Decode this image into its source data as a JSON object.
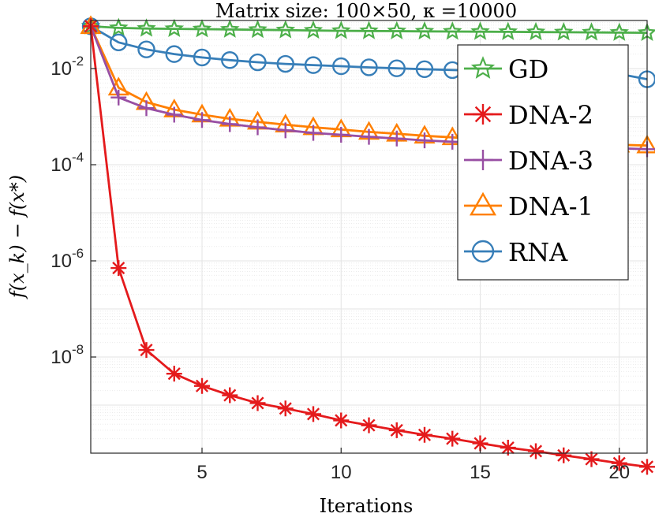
{
  "chart_data": {
    "type": "line",
    "title": "Matrix size: 100×50, κ =10000",
    "xlabel": "Iterations",
    "ylabel": "f(x_k) − f(x*)",
    "xlim": [
      1,
      21
    ],
    "ylim": [
      1e-10,
      0.1
    ],
    "yscale": "log",
    "x_ticks": [
      5,
      10,
      15,
      20
    ],
    "y_ticks": [
      {
        "value": 0.01,
        "base": "10",
        "exp": "-2"
      },
      {
        "value": 0.0001,
        "base": "10",
        "exp": "-4"
      },
      {
        "value": 1e-06,
        "base": "10",
        "exp": "-6"
      },
      {
        "value": 1e-08,
        "base": "10",
        "exp": "-8"
      }
    ],
    "grid": true,
    "minor_grid": true,
    "legend_position": "top-right",
    "x": [
      1,
      2,
      3,
      4,
      5,
      6,
      7,
      8,
      9,
      10,
      11,
      12,
      13,
      14,
      15,
      16,
      17,
      18,
      19,
      20,
      21
    ],
    "series": [
      {
        "name": "GD",
        "color": "#4daf4a",
        "marker": "star",
        "values": [
          0.076,
          0.07,
          0.068,
          0.067,
          0.066,
          0.065,
          0.064,
          0.063,
          0.062,
          0.061,
          0.0605,
          0.06,
          0.0595,
          0.059,
          0.0585,
          0.058,
          0.0575,
          0.057,
          0.0565,
          0.056,
          0.0555
        ]
      },
      {
        "name": "DNA-2",
        "color": "#e41a1c",
        "marker": "asterisk",
        "values": [
          0.076,
          7.1e-07,
          1.4e-08,
          4.5e-09,
          2.5e-09,
          1.6e-09,
          1.1e-09,
          8.5e-10,
          6.5e-10,
          4.8e-10,
          3.8e-10,
          3e-10,
          2.4e-10,
          2e-10,
          1.6e-10,
          1.3e-10,
          1.1e-10,
          9e-11,
          7.5e-11,
          6.2e-11,
          5.2e-11
        ]
      },
      {
        "name": "DNA-3",
        "color": "#984ea3",
        "marker": "plus",
        "values": [
          0.076,
          0.0025,
          0.0015,
          0.0011,
          0.00085,
          0.0007,
          0.0006,
          0.00052,
          0.00046,
          0.00042,
          0.00038,
          0.00035,
          0.00032,
          0.0003,
          0.00028,
          0.00026,
          0.00025,
          0.00024,
          0.00023,
          0.00022,
          0.00021
        ]
      },
      {
        "name": "DNA-1",
        "color": "#ff7f00",
        "marker": "triangle",
        "values": [
          0.076,
          0.004,
          0.002,
          0.0014,
          0.0011,
          0.0009,
          0.00078,
          0.00068,
          0.0006,
          0.00054,
          0.00048,
          0.00044,
          0.0004,
          0.00037,
          0.00034,
          0.00032,
          0.0003,
          0.00028,
          0.00027,
          0.00026,
          0.00025
        ]
      },
      {
        "name": "RNA",
        "color": "#377eb8",
        "marker": "circle",
        "values": [
          0.076,
          0.035,
          0.025,
          0.02,
          0.017,
          0.015,
          0.0135,
          0.0125,
          0.0118,
          0.0112,
          0.0106,
          0.0101,
          0.0097,
          0.0093,
          0.009,
          0.0087,
          0.0084,
          0.0081,
          0.0079,
          0.0077,
          0.006
        ]
      }
    ]
  }
}
